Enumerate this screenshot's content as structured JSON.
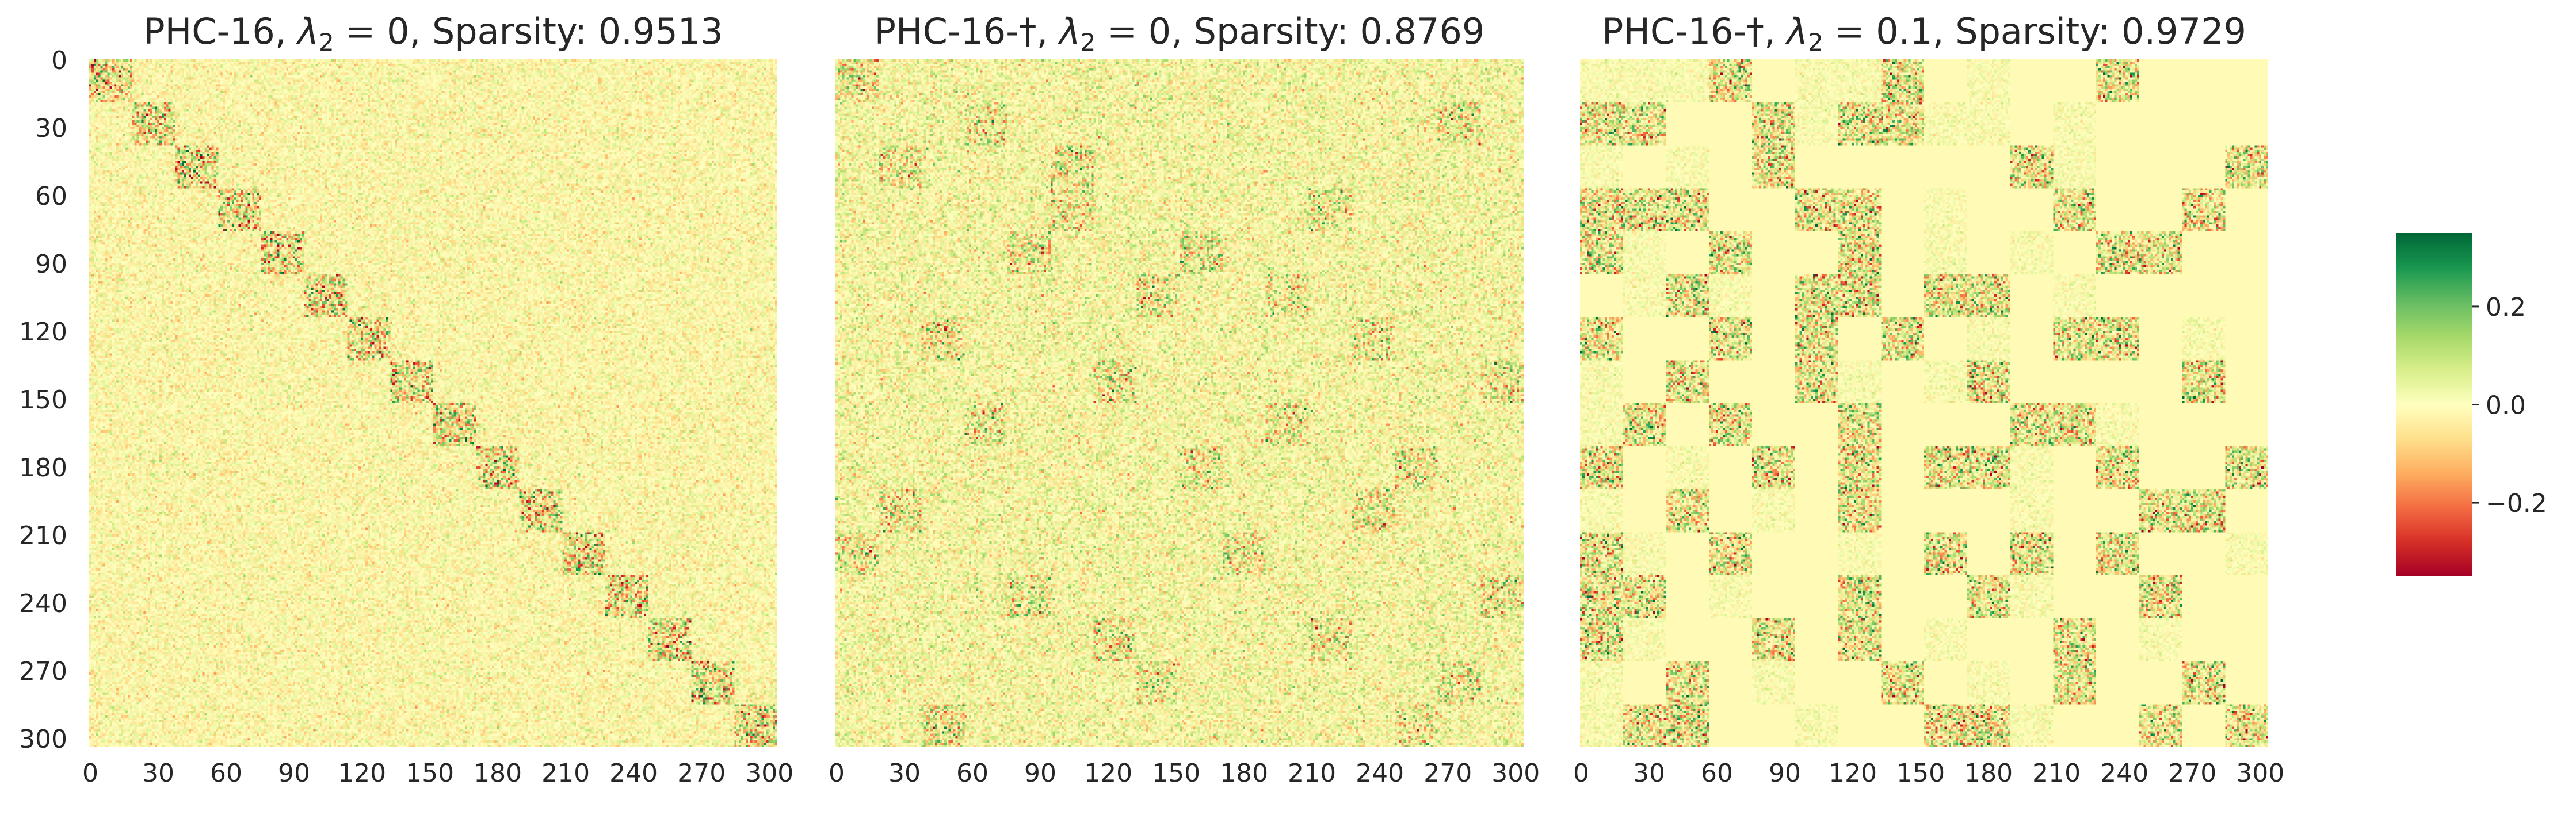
{
  "figure": {
    "colormap": [
      "#a50026",
      "#d73027",
      "#f46d43",
      "#fdae61",
      "#fee08b",
      "#ffffbf",
      "#d9ef8b",
      "#a6d96a",
      "#66bd63",
      "#1a9850",
      "#006837"
    ],
    "colorbar": {
      "vmin": -0.35,
      "vmax": 0.35,
      "ticks": [
        -0.2,
        0.0,
        0.2
      ],
      "tick_labels": [
        "−0.2",
        "0.0",
        "0.2"
      ]
    }
  },
  "chart_data": [
    {
      "type": "heatmap",
      "title_text": "PHC-16, ",
      "title_lambda_sub": "2",
      "title_lambda_value": " = 0",
      "title_sparsity": ", Sparsity: 0.9513",
      "rows": 304,
      "cols": 304,
      "xticks": [
        0,
        30,
        60,
        90,
        120,
        150,
        180,
        210,
        240,
        270,
        300
      ],
      "yticks": [
        0,
        30,
        60,
        90,
        120,
        150,
        180,
        210,
        240,
        270,
        300
      ],
      "block_size": 19,
      "structure": "block-diagonal",
      "active_blocks": "diagonal",
      "base_noise": 0.045,
      "active_noise": 0.14
    },
    {
      "type": "heatmap",
      "title_text": "PHC-16-†, ",
      "title_lambda_sub": "2",
      "title_lambda_value": " = 0",
      "title_sparsity": ", Sparsity: 0.8769",
      "rows": 304,
      "cols": 304,
      "xticks": [
        0,
        30,
        60,
        90,
        120,
        150,
        180,
        210,
        240,
        270,
        300
      ],
      "yticks": [
        0,
        30,
        60,
        90,
        120,
        150,
        180,
        210,
        240,
        270,
        300
      ],
      "block_size": 19,
      "structure": "permuted-blocks",
      "active_blocks": [
        [
          0,
          0
        ],
        [
          1,
          3
        ],
        [
          2,
          1
        ],
        [
          3,
          5
        ],
        [
          4,
          4
        ],
        [
          5,
          7
        ],
        [
          6,
          2
        ],
        [
          7,
          6
        ],
        [
          8,
          10
        ],
        [
          9,
          8
        ],
        [
          10,
          12
        ],
        [
          11,
          9
        ],
        [
          12,
          15
        ],
        [
          13,
          11
        ],
        [
          14,
          14
        ],
        [
          15,
          13
        ],
        [
          2,
          5
        ],
        [
          5,
          10
        ],
        [
          9,
          13
        ],
        [
          4,
          8
        ],
        [
          6,
          12
        ],
        [
          1,
          14
        ],
        [
          13,
          6
        ],
        [
          8,
          3
        ],
        [
          10,
          1
        ],
        [
          12,
          4
        ],
        [
          3,
          11
        ],
        [
          7,
          15
        ],
        [
          11,
          0
        ],
        [
          14,
          7
        ],
        [
          15,
          2
        ]
      ],
      "base_noise": 0.06,
      "active_noise": 0.11
    },
    {
      "type": "heatmap",
      "title_text": "PHC-16-†, ",
      "title_lambda_sub": "2",
      "title_lambda_value": " = 0.1",
      "title_sparsity": ", Sparsity: 0.9729",
      "rows": 304,
      "cols": 304,
      "xticks": [
        0,
        30,
        60,
        90,
        120,
        150,
        180,
        210,
        240,
        270,
        300
      ],
      "yticks": [
        0,
        30,
        60,
        90,
        120,
        150,
        180,
        210,
        240,
        270,
        300
      ],
      "block_size": 19,
      "structure": "sparse-blocks",
      "active_blocks": [
        [
          0,
          3
        ],
        [
          0,
          7
        ],
        [
          0,
          12
        ],
        [
          1,
          0
        ],
        [
          1,
          1
        ],
        [
          1,
          4
        ],
        [
          1,
          6
        ],
        [
          1,
          7
        ],
        [
          2,
          4
        ],
        [
          2,
          10
        ],
        [
          2,
          15
        ],
        [
          3,
          0
        ],
        [
          3,
          1
        ],
        [
          3,
          2
        ],
        [
          3,
          5
        ],
        [
          3,
          6
        ],
        [
          3,
          11
        ],
        [
          3,
          14
        ],
        [
          4,
          0
        ],
        [
          4,
          3
        ],
        [
          4,
          6
        ],
        [
          4,
          12
        ],
        [
          4,
          13
        ],
        [
          5,
          2
        ],
        [
          5,
          5
        ],
        [
          5,
          6
        ],
        [
          5,
          8
        ],
        [
          5,
          9
        ],
        [
          6,
          0
        ],
        [
          6,
          3
        ],
        [
          6,
          5
        ],
        [
          6,
          7
        ],
        [
          6,
          11
        ],
        [
          6,
          12
        ],
        [
          7,
          2
        ],
        [
          7,
          5
        ],
        [
          7,
          9
        ],
        [
          7,
          14
        ],
        [
          8,
          1
        ],
        [
          8,
          3
        ],
        [
          8,
          6
        ],
        [
          8,
          10
        ],
        [
          8,
          11
        ],
        [
          9,
          0
        ],
        [
          9,
          4
        ],
        [
          9,
          6
        ],
        [
          9,
          8
        ],
        [
          9,
          9
        ],
        [
          9,
          12
        ],
        [
          9,
          15
        ],
        [
          10,
          2
        ],
        [
          10,
          6
        ],
        [
          10,
          13
        ],
        [
          10,
          14
        ],
        [
          11,
          0
        ],
        [
          11,
          3
        ],
        [
          11,
          8
        ],
        [
          11,
          10
        ],
        [
          11,
          12
        ],
        [
          12,
          0
        ],
        [
          12,
          1
        ],
        [
          12,
          6
        ],
        [
          12,
          9
        ],
        [
          12,
          13
        ],
        [
          13,
          0
        ],
        [
          13,
          4
        ],
        [
          13,
          6
        ],
        [
          13,
          11
        ],
        [
          14,
          2
        ],
        [
          14,
          7
        ],
        [
          14,
          11
        ],
        [
          14,
          14
        ],
        [
          15,
          1
        ],
        [
          15,
          2
        ],
        [
          15,
          8
        ],
        [
          15,
          9
        ],
        [
          15,
          13
        ],
        [
          15,
          15
        ]
      ],
      "faint_blocks": [
        [
          0,
          0
        ],
        [
          0,
          1
        ],
        [
          0,
          2
        ],
        [
          0,
          5
        ],
        [
          0,
          6
        ],
        [
          0,
          9
        ],
        [
          1,
          5
        ],
        [
          1,
          8
        ],
        [
          1,
          9
        ],
        [
          1,
          11
        ],
        [
          2,
          0
        ],
        [
          2,
          2
        ],
        [
          2,
          11
        ],
        [
          3,
          8
        ],
        [
          4,
          1
        ],
        [
          4,
          8
        ],
        [
          4,
          10
        ],
        [
          5,
          1
        ],
        [
          5,
          3
        ],
        [
          5,
          11
        ],
        [
          6,
          9
        ],
        [
          6,
          14
        ],
        [
          7,
          0
        ],
        [
          7,
          6
        ],
        [
          7,
          8
        ],
        [
          8,
          0
        ],
        [
          8,
          12
        ],
        [
          9,
          2
        ],
        [
          9,
          10
        ],
        [
          10,
          0
        ],
        [
          10,
          4
        ],
        [
          10,
          10
        ],
        [
          11,
          1
        ],
        [
          11,
          6
        ],
        [
          11,
          15
        ],
        [
          12,
          3
        ],
        [
          12,
          10
        ],
        [
          13,
          1
        ],
        [
          13,
          8
        ],
        [
          13,
          13
        ],
        [
          14,
          0
        ],
        [
          14,
          4
        ],
        [
          14,
          9
        ],
        [
          15,
          0
        ],
        [
          15,
          5
        ],
        [
          15,
          10
        ]
      ],
      "base_noise": 0.0,
      "faint_noise": 0.03,
      "active_noise": 0.13
    }
  ]
}
